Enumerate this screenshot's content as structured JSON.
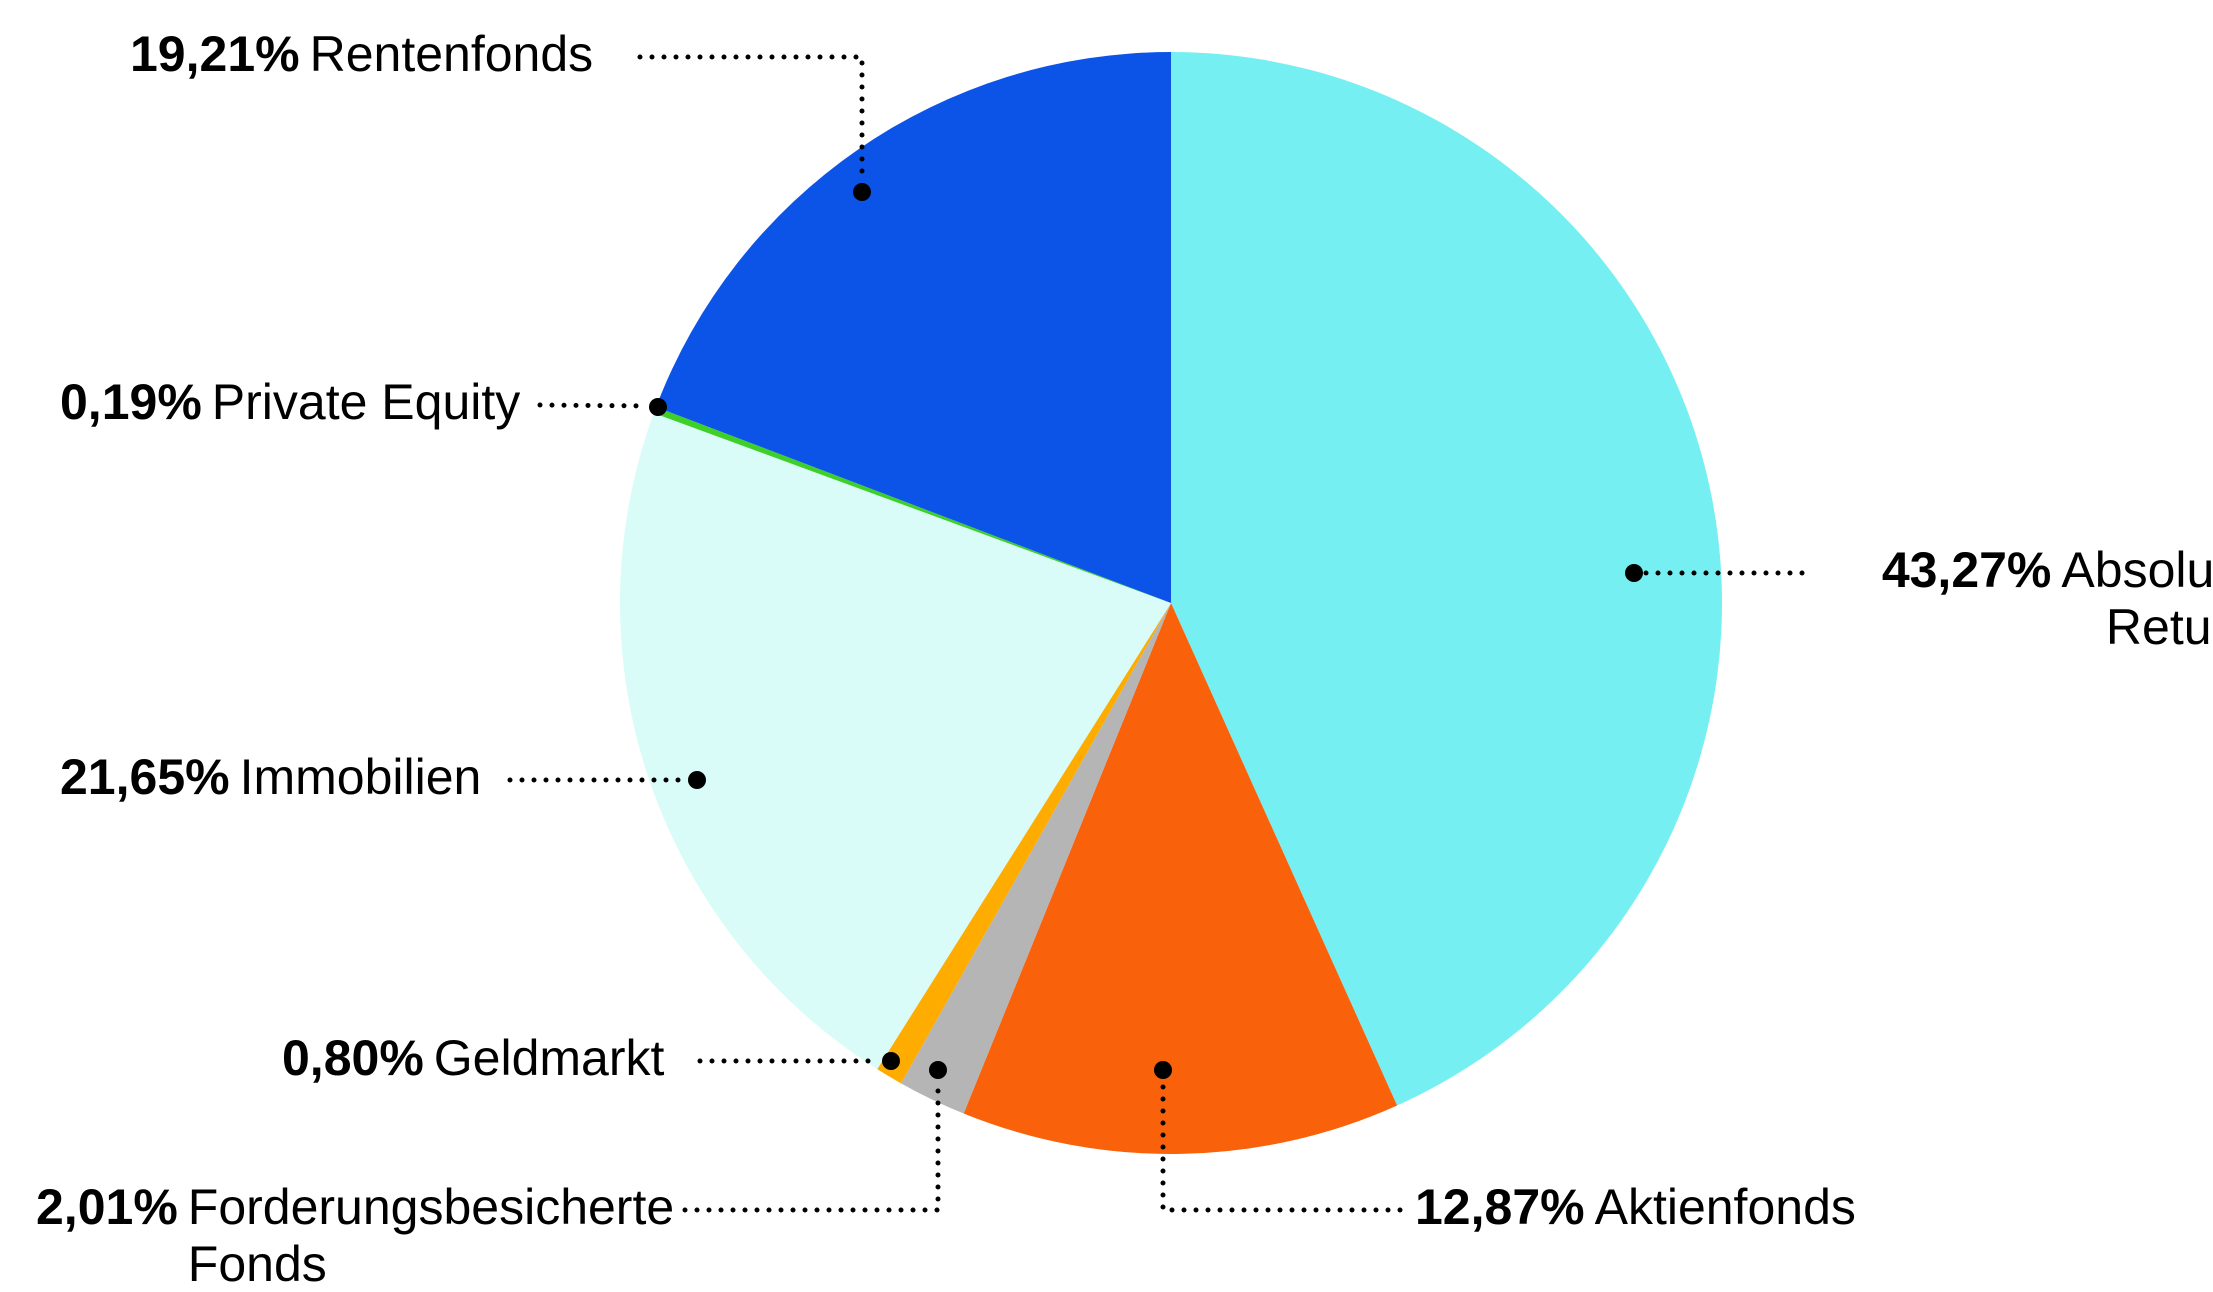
{
  "chart_data": {
    "type": "pie",
    "title": "",
    "direction": "clockwise",
    "start_angle": "12-oclock",
    "legend_position": "callout-labels",
    "background_color": "#FFFFFF",
    "leader_line_style": "dotted-black-with-end-dot",
    "slices": [
      {
        "name": "Absolute Return",
        "percent_label": "43,27%",
        "value": 43.27,
        "color": "#76EFF2"
      },
      {
        "name": "Aktienfonds",
        "percent_label": "12,87%",
        "value": 12.87,
        "color": "#F9610B"
      },
      {
        "name": "Forderungsbesicherte Fonds",
        "percent_label": "2,01%",
        "value": 2.01,
        "color": "#B5B5B5"
      },
      {
        "name": "Geldmarkt",
        "percent_label": "0,80%",
        "value": 0.8,
        "color": "#FFAC00"
      },
      {
        "name": "Immobilien",
        "percent_label": "21,65%",
        "value": 21.65,
        "color": "#D9FCF8"
      },
      {
        "name": "Private Equity",
        "percent_label": "0,19%",
        "value": 0.19,
        "color": "#3ED029"
      },
      {
        "name": "Rentenfonds",
        "percent_label": "19,21%",
        "value": 19.21,
        "color": "#0C53E8"
      }
    ]
  }
}
